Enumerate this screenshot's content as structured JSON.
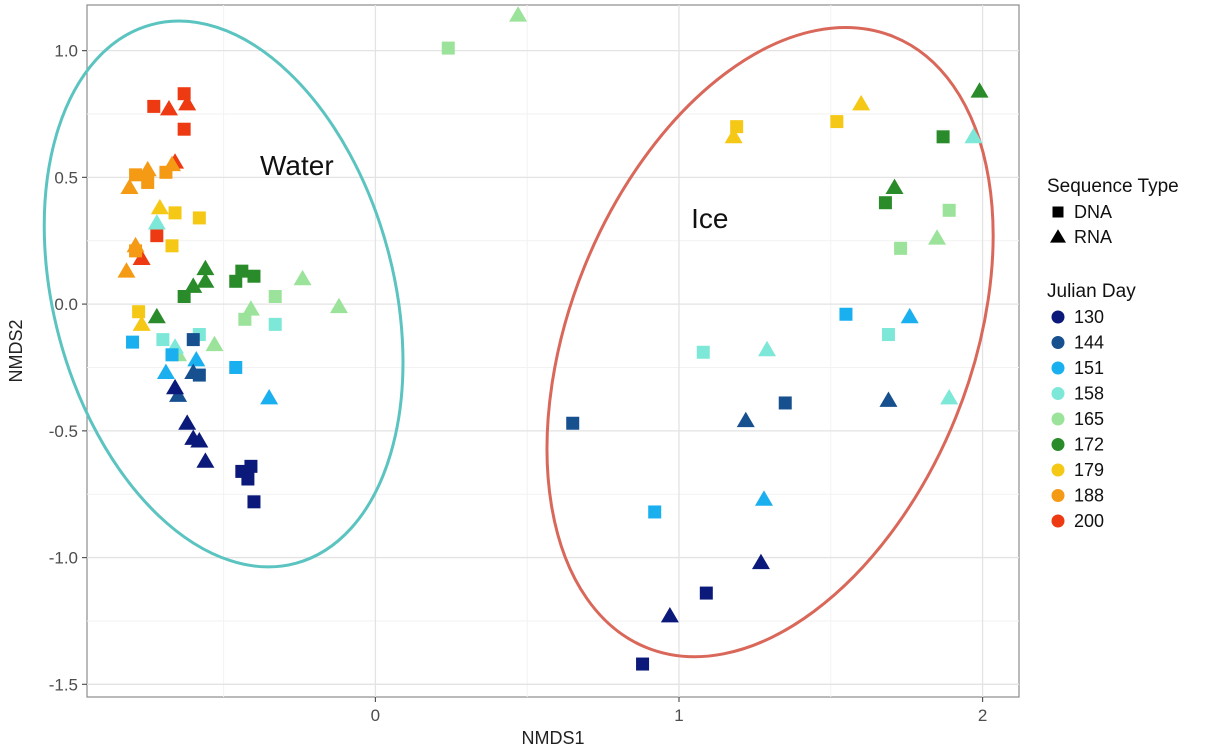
{
  "chart_data": {
    "type": "scatter",
    "xlabel": "NMDS1",
    "ylabel": "NMDS2",
    "xlim": [
      -0.95,
      2.12
    ],
    "ylim": [
      -1.55,
      1.18
    ],
    "xticks": [
      0,
      1,
      2
    ],
    "yticks": [
      1.0,
      0.5,
      0.0,
      -0.5,
      -1.0,
      -1.5
    ],
    "xtick_labels": [
      "0",
      "1",
      "2"
    ],
    "ytick_labels": [
      "1.0",
      "0.5",
      "0.0",
      "-0.5",
      "-1.0",
      "-1.5"
    ],
    "grid": true,
    "legend_position": "right",
    "legends": {
      "shape": {
        "title": "Sequence Type",
        "items": [
          {
            "label": "DNA",
            "shape": "square"
          },
          {
            "label": "RNA",
            "shape": "triangle"
          }
        ]
      },
      "color": {
        "title": "Julian Day",
        "items": [
          {
            "label": "130",
            "color": "#0b1a7a"
          },
          {
            "label": "144",
            "color": "#17508f"
          },
          {
            "label": "151",
            "color": "#1ab0f0"
          },
          {
            "label": "158",
            "color": "#7ee8d8"
          },
          {
            "label": "165",
            "color": "#9be39b"
          },
          {
            "label": "172",
            "color": "#2a8b2a"
          },
          {
            "label": "179",
            "color": "#f5c816"
          },
          {
            "label": "188",
            "color": "#f59a14"
          },
          {
            "label": "200",
            "color": "#ee3a12"
          }
        ]
      }
    },
    "ellipses": [
      {
        "label": "Water",
        "color": "#5bc4c0",
        "cx": -0.5,
        "cy": 0.04,
        "rx": 0.56,
        "ry": 1.1,
        "angle_deg": -15,
        "label_x": -0.38,
        "label_y": 0.51
      },
      {
        "label": "Ice",
        "color": "#d9685a",
        "cx": 1.3,
        "cy": -0.15,
        "rx": 0.66,
        "ry": 1.3,
        "angle_deg": 22,
        "label_x": 1.04,
        "label_y": 0.3
      }
    ],
    "points": [
      {
        "x": -0.73,
        "y": 0.78,
        "day": "200",
        "type": "DNA"
      },
      {
        "x": -0.63,
        "y": 0.83,
        "day": "200",
        "type": "DNA"
      },
      {
        "x": -0.63,
        "y": 0.69,
        "day": "200",
        "type": "DNA"
      },
      {
        "x": -0.72,
        "y": 0.27,
        "day": "200",
        "type": "DNA"
      },
      {
        "x": -0.68,
        "y": 0.77,
        "day": "200",
        "type": "RNA"
      },
      {
        "x": -0.62,
        "y": 0.79,
        "day": "200",
        "type": "RNA"
      },
      {
        "x": -0.66,
        "y": 0.56,
        "day": "200",
        "type": "RNA"
      },
      {
        "x": -0.77,
        "y": 0.18,
        "day": "200",
        "type": "RNA"
      },
      {
        "x": -0.79,
        "y": 0.51,
        "day": "188",
        "type": "DNA"
      },
      {
        "x": -0.75,
        "y": 0.48,
        "day": "188",
        "type": "DNA"
      },
      {
        "x": -0.79,
        "y": 0.21,
        "day": "188",
        "type": "DNA"
      },
      {
        "x": -0.69,
        "y": 0.52,
        "day": "188",
        "type": "DNA"
      },
      {
        "x": -0.81,
        "y": 0.46,
        "day": "188",
        "type": "RNA"
      },
      {
        "x": -0.75,
        "y": 0.53,
        "day": "188",
        "type": "RNA"
      },
      {
        "x": -0.82,
        "y": 0.13,
        "day": "188",
        "type": "RNA"
      },
      {
        "x": -0.79,
        "y": 0.23,
        "day": "188",
        "type": "RNA"
      },
      {
        "x": -0.67,
        "y": 0.55,
        "day": "188",
        "type": "RNA"
      },
      {
        "x": -0.66,
        "y": 0.36,
        "day": "179",
        "type": "DNA"
      },
      {
        "x": -0.58,
        "y": 0.34,
        "day": "179",
        "type": "DNA"
      },
      {
        "x": -0.67,
        "y": 0.23,
        "day": "179",
        "type": "DNA"
      },
      {
        "x": -0.78,
        "y": -0.03,
        "day": "179",
        "type": "DNA"
      },
      {
        "x": 1.19,
        "y": 0.7,
        "day": "179",
        "type": "DNA"
      },
      {
        "x": 1.52,
        "y": 0.72,
        "day": "179",
        "type": "DNA"
      },
      {
        "x": -0.71,
        "y": 0.38,
        "day": "179",
        "type": "RNA"
      },
      {
        "x": -0.77,
        "y": -0.08,
        "day": "179",
        "type": "RNA"
      },
      {
        "x": 1.6,
        "y": 0.79,
        "day": "179",
        "type": "RNA"
      },
      {
        "x": 1.18,
        "y": 0.66,
        "day": "179",
        "type": "RNA"
      },
      {
        "x": -0.63,
        "y": 0.03,
        "day": "172",
        "type": "DNA"
      },
      {
        "x": -0.46,
        "y": 0.09,
        "day": "172",
        "type": "DNA"
      },
      {
        "x": -0.44,
        "y": 0.13,
        "day": "172",
        "type": "DNA"
      },
      {
        "x": -0.4,
        "y": 0.11,
        "day": "172",
        "type": "DNA"
      },
      {
        "x": 1.68,
        "y": 0.4,
        "day": "172",
        "type": "DNA"
      },
      {
        "x": 1.87,
        "y": 0.66,
        "day": "172",
        "type": "DNA"
      },
      {
        "x": -0.72,
        "y": -0.05,
        "day": "172",
        "type": "RNA"
      },
      {
        "x": -0.6,
        "y": 0.07,
        "day": "172",
        "type": "RNA"
      },
      {
        "x": -0.56,
        "y": 0.09,
        "day": "172",
        "type": "RNA"
      },
      {
        "x": -0.56,
        "y": 0.14,
        "day": "172",
        "type": "RNA"
      },
      {
        "x": 1.71,
        "y": 0.46,
        "day": "172",
        "type": "RNA"
      },
      {
        "x": 1.99,
        "y": 0.84,
        "day": "172",
        "type": "RNA"
      },
      {
        "x": 0.24,
        "y": 1.01,
        "day": "165",
        "type": "DNA"
      },
      {
        "x": -0.43,
        "y": -0.06,
        "day": "165",
        "type": "DNA"
      },
      {
        "x": -0.33,
        "y": 0.03,
        "day": "165",
        "type": "DNA"
      },
      {
        "x": 1.73,
        "y": 0.22,
        "day": "165",
        "type": "DNA"
      },
      {
        "x": 1.89,
        "y": 0.37,
        "day": "165",
        "type": "DNA"
      },
      {
        "x": 0.47,
        "y": 1.14,
        "day": "165",
        "type": "RNA"
      },
      {
        "x": -0.24,
        "y": 0.1,
        "day": "165",
        "type": "RNA"
      },
      {
        "x": -0.12,
        "y": -0.01,
        "day": "165",
        "type": "RNA"
      },
      {
        "x": -0.41,
        "y": -0.02,
        "day": "165",
        "type": "RNA"
      },
      {
        "x": -0.53,
        "y": -0.16,
        "day": "165",
        "type": "RNA"
      },
      {
        "x": -0.65,
        "y": -0.2,
        "day": "165",
        "type": "RNA"
      },
      {
        "x": 1.85,
        "y": 0.26,
        "day": "165",
        "type": "RNA"
      },
      {
        "x": -0.33,
        "y": -0.08,
        "day": "158",
        "type": "DNA"
      },
      {
        "x": -0.7,
        "y": -0.14,
        "day": "158",
        "type": "DNA"
      },
      {
        "x": -0.58,
        "y": -0.12,
        "day": "158",
        "type": "DNA"
      },
      {
        "x": 1.08,
        "y": -0.19,
        "day": "158",
        "type": "DNA"
      },
      {
        "x": 1.69,
        "y": -0.12,
        "day": "158",
        "type": "DNA"
      },
      {
        "x": -0.72,
        "y": 0.32,
        "day": "158",
        "type": "RNA"
      },
      {
        "x": -0.66,
        "y": -0.17,
        "day": "158",
        "type": "RNA"
      },
      {
        "x": 1.29,
        "y": -0.18,
        "day": "158",
        "type": "RNA"
      },
      {
        "x": 1.97,
        "y": 0.66,
        "day": "158",
        "type": "RNA"
      },
      {
        "x": 1.89,
        "y": -0.37,
        "day": "158",
        "type": "RNA"
      },
      {
        "x": -0.8,
        "y": -0.15,
        "day": "151",
        "type": "DNA"
      },
      {
        "x": -0.46,
        "y": -0.25,
        "day": "151",
        "type": "DNA"
      },
      {
        "x": -0.67,
        "y": -0.2,
        "day": "151",
        "type": "DNA"
      },
      {
        "x": 0.92,
        "y": -0.82,
        "day": "151",
        "type": "DNA"
      },
      {
        "x": 1.55,
        "y": -0.04,
        "day": "151",
        "type": "DNA"
      },
      {
        "x": -0.35,
        "y": -0.37,
        "day": "151",
        "type": "RNA"
      },
      {
        "x": -0.69,
        "y": -0.27,
        "day": "151",
        "type": "RNA"
      },
      {
        "x": -0.59,
        "y": -0.22,
        "day": "151",
        "type": "RNA"
      },
      {
        "x": 1.76,
        "y": -0.05,
        "day": "151",
        "type": "RNA"
      },
      {
        "x": 1.28,
        "y": -0.77,
        "day": "151",
        "type": "RNA"
      },
      {
        "x": -0.58,
        "y": -0.28,
        "day": "144",
        "type": "DNA"
      },
      {
        "x": 1.35,
        "y": -0.39,
        "day": "144",
        "type": "DNA"
      },
      {
        "x": 0.65,
        "y": -0.47,
        "day": "144",
        "type": "DNA"
      },
      {
        "x": -0.6,
        "y": -0.14,
        "day": "144",
        "type": "DNA"
      },
      {
        "x": -0.6,
        "y": -0.27,
        "day": "144",
        "type": "RNA"
      },
      {
        "x": -0.65,
        "y": -0.36,
        "day": "144",
        "type": "RNA"
      },
      {
        "x": 1.22,
        "y": -0.46,
        "day": "144",
        "type": "RNA"
      },
      {
        "x": 1.69,
        "y": -0.38,
        "day": "144",
        "type": "RNA"
      },
      {
        "x": -0.44,
        "y": -0.66,
        "day": "130",
        "type": "DNA"
      },
      {
        "x": -0.42,
        "y": -0.69,
        "day": "130",
        "type": "DNA"
      },
      {
        "x": -0.41,
        "y": -0.64,
        "day": "130",
        "type": "DNA"
      },
      {
        "x": -0.4,
        "y": -0.78,
        "day": "130",
        "type": "DNA"
      },
      {
        "x": 1.09,
        "y": -1.14,
        "day": "130",
        "type": "DNA"
      },
      {
        "x": 0.88,
        "y": -1.42,
        "day": "130",
        "type": "DNA"
      },
      {
        "x": -0.62,
        "y": -0.47,
        "day": "130",
        "type": "RNA"
      },
      {
        "x": -0.6,
        "y": -0.53,
        "day": "130",
        "type": "RNA"
      },
      {
        "x": -0.58,
        "y": -0.54,
        "day": "130",
        "type": "RNA"
      },
      {
        "x": -0.56,
        "y": -0.62,
        "day": "130",
        "type": "RNA"
      },
      {
        "x": -0.66,
        "y": -0.33,
        "day": "130",
        "type": "RNA"
      },
      {
        "x": 0.97,
        "y": -1.23,
        "day": "130",
        "type": "RNA"
      },
      {
        "x": 1.27,
        "y": -1.02,
        "day": "130",
        "type": "RNA"
      }
    ]
  }
}
